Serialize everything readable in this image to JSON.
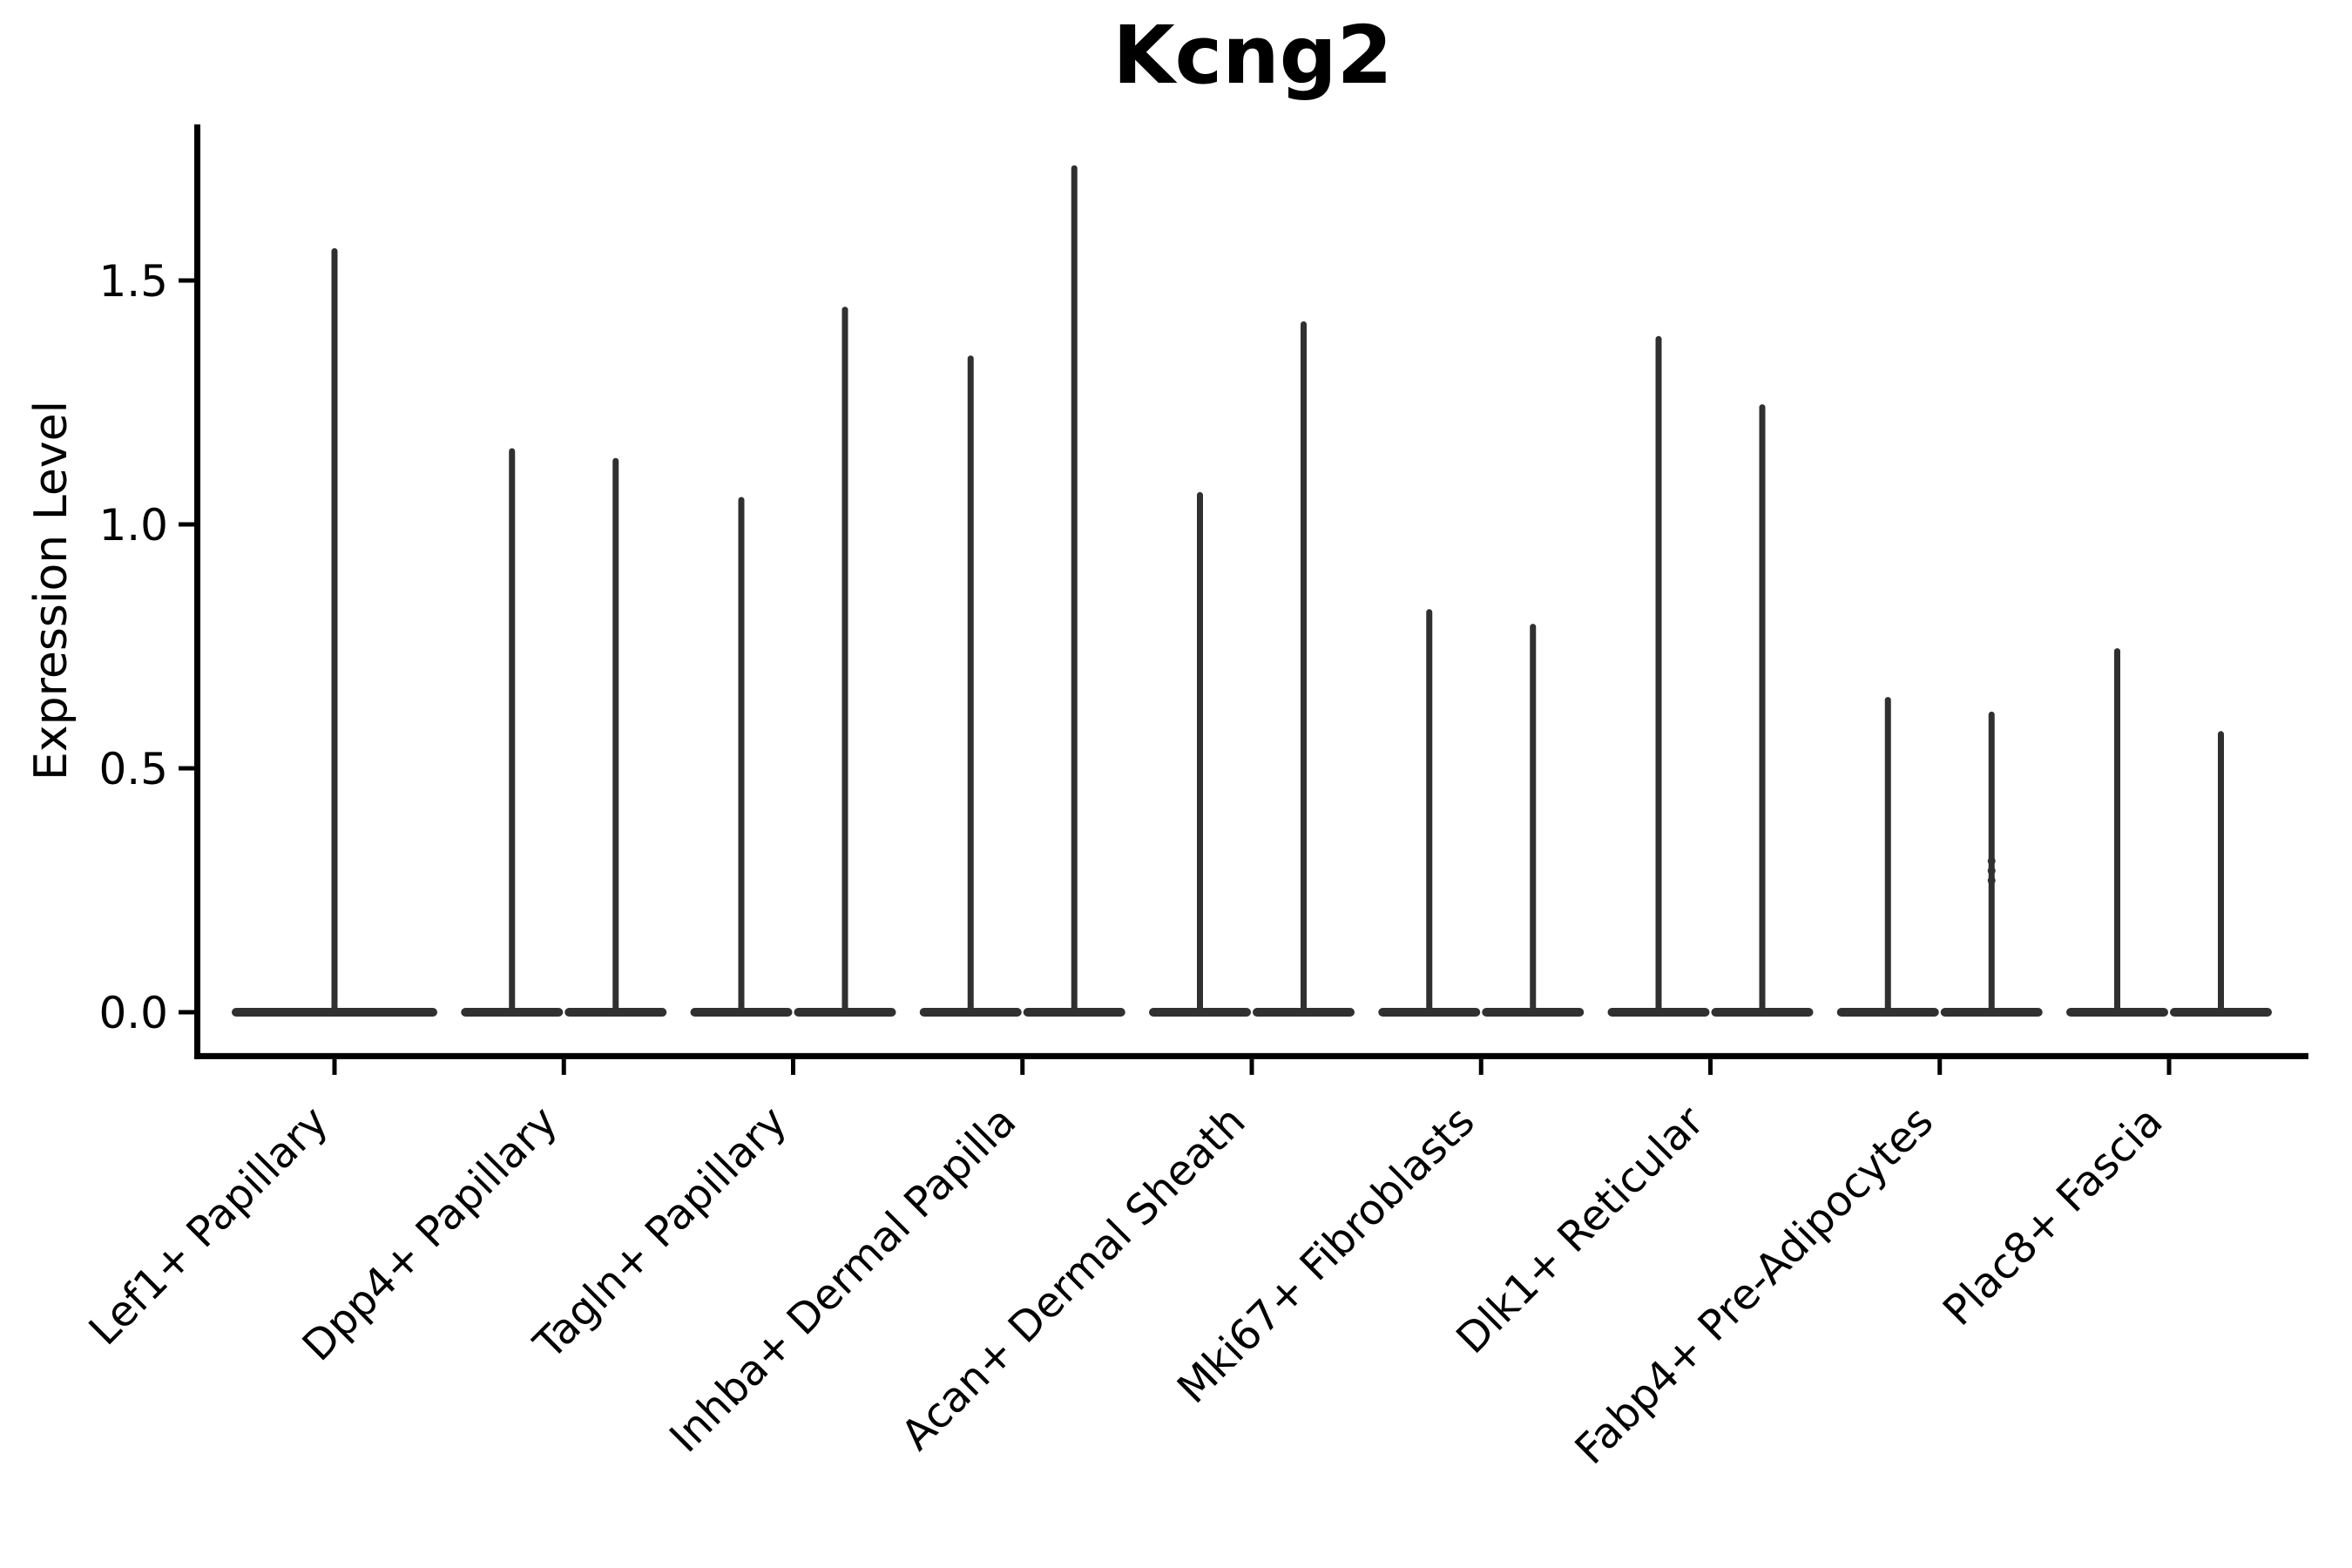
{
  "chart_data": {
    "type": "violin",
    "title": "Kcng2",
    "ylabel": "Expression Level",
    "xlabel": "",
    "legend": "none",
    "grid": false,
    "background": "#ffffff",
    "violin_color": "#303030",
    "axis_color": "#000000",
    "ylim": [
      -0.09,
      1.82
    ],
    "ytick_values": [
      0,
      0.5,
      1.0,
      1.5
    ],
    "yticks": [
      "0.0",
      "0.5",
      "1.0",
      "1.5"
    ],
    "categories": [
      "Lef1+ Papillary",
      "Dpp4+ Papillary",
      "Tagln+ Papillary",
      "Inhba+ Dermal Papilla",
      "Acan+ Dermal Sheath",
      "Mki67+ Fibroblasts",
      "Dlk1+ Reticular",
      "Fabp4+ Pre-Adipocytes",
      "Plac8+ Fascia"
    ],
    "series": [
      {
        "category": "Lef1+ Papillary",
        "violin_maxima": [
          1.56
        ]
      },
      {
        "category": "Dpp4+ Papillary",
        "violin_maxima": [
          1.15,
          1.13
        ]
      },
      {
        "category": "Tagln+ Papillary",
        "violin_maxima": [
          1.05,
          1.44
        ]
      },
      {
        "category": "Inhba+ Dermal Papilla",
        "violin_maxima": [
          1.34,
          1.73
        ]
      },
      {
        "category": "Acan+ Dermal Sheath",
        "violin_maxima": [
          1.06,
          1.41
        ]
      },
      {
        "category": "Mki67+ Fibroblasts",
        "violin_maxima": [
          0.82,
          0.79
        ]
      },
      {
        "category": "Dlk1+ Reticular",
        "violin_maxima": [
          1.38,
          1.24
        ]
      },
      {
        "category": "Fabp4+ Pre-Adipocytes",
        "violin_maxima": [
          0.64,
          0.61
        ]
      },
      {
        "category": "Plac8+ Fascia",
        "violin_maxima": [
          0.74,
          0.57
        ]
      }
    ],
    "baseline_value": 0,
    "jitter_points": [
      {
        "category_index": 7,
        "group_index": 1,
        "values": [
          0.31,
          0.29,
          0.27
        ]
      }
    ]
  }
}
